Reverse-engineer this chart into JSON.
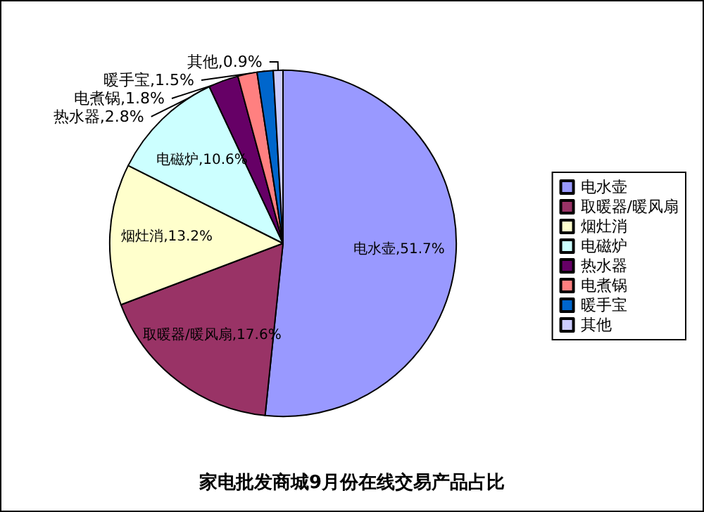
{
  "chart_data": {
    "type": "pie",
    "title": "家电批发商城9月份在线交易产品占比",
    "categories": [
      "电水壶",
      "取暖器/暖风扇",
      "烟灶消",
      "电磁炉",
      "热水器",
      "电煮锅",
      "暖手宝",
      "其他"
    ],
    "values": [
      51.7,
      17.6,
      13.2,
      10.6,
      2.8,
      1.8,
      1.5,
      0.9
    ],
    "colors": [
      "#9999ff",
      "#993366",
      "#ffffcc",
      "#ccffff",
      "#660066",
      "#ff8080",
      "#0066cc",
      "#ccccff"
    ],
    "value_labels": [
      "电水壶,51.7%",
      "取暖器/暖风扇,17.6%",
      "烟灶消,13.2%",
      "电磁炉,10.6%",
      "热水器,2.8%",
      "电煮锅,1.8%",
      "暖手宝,1.5%",
      "其他,0.9%"
    ],
    "legend": "right"
  }
}
